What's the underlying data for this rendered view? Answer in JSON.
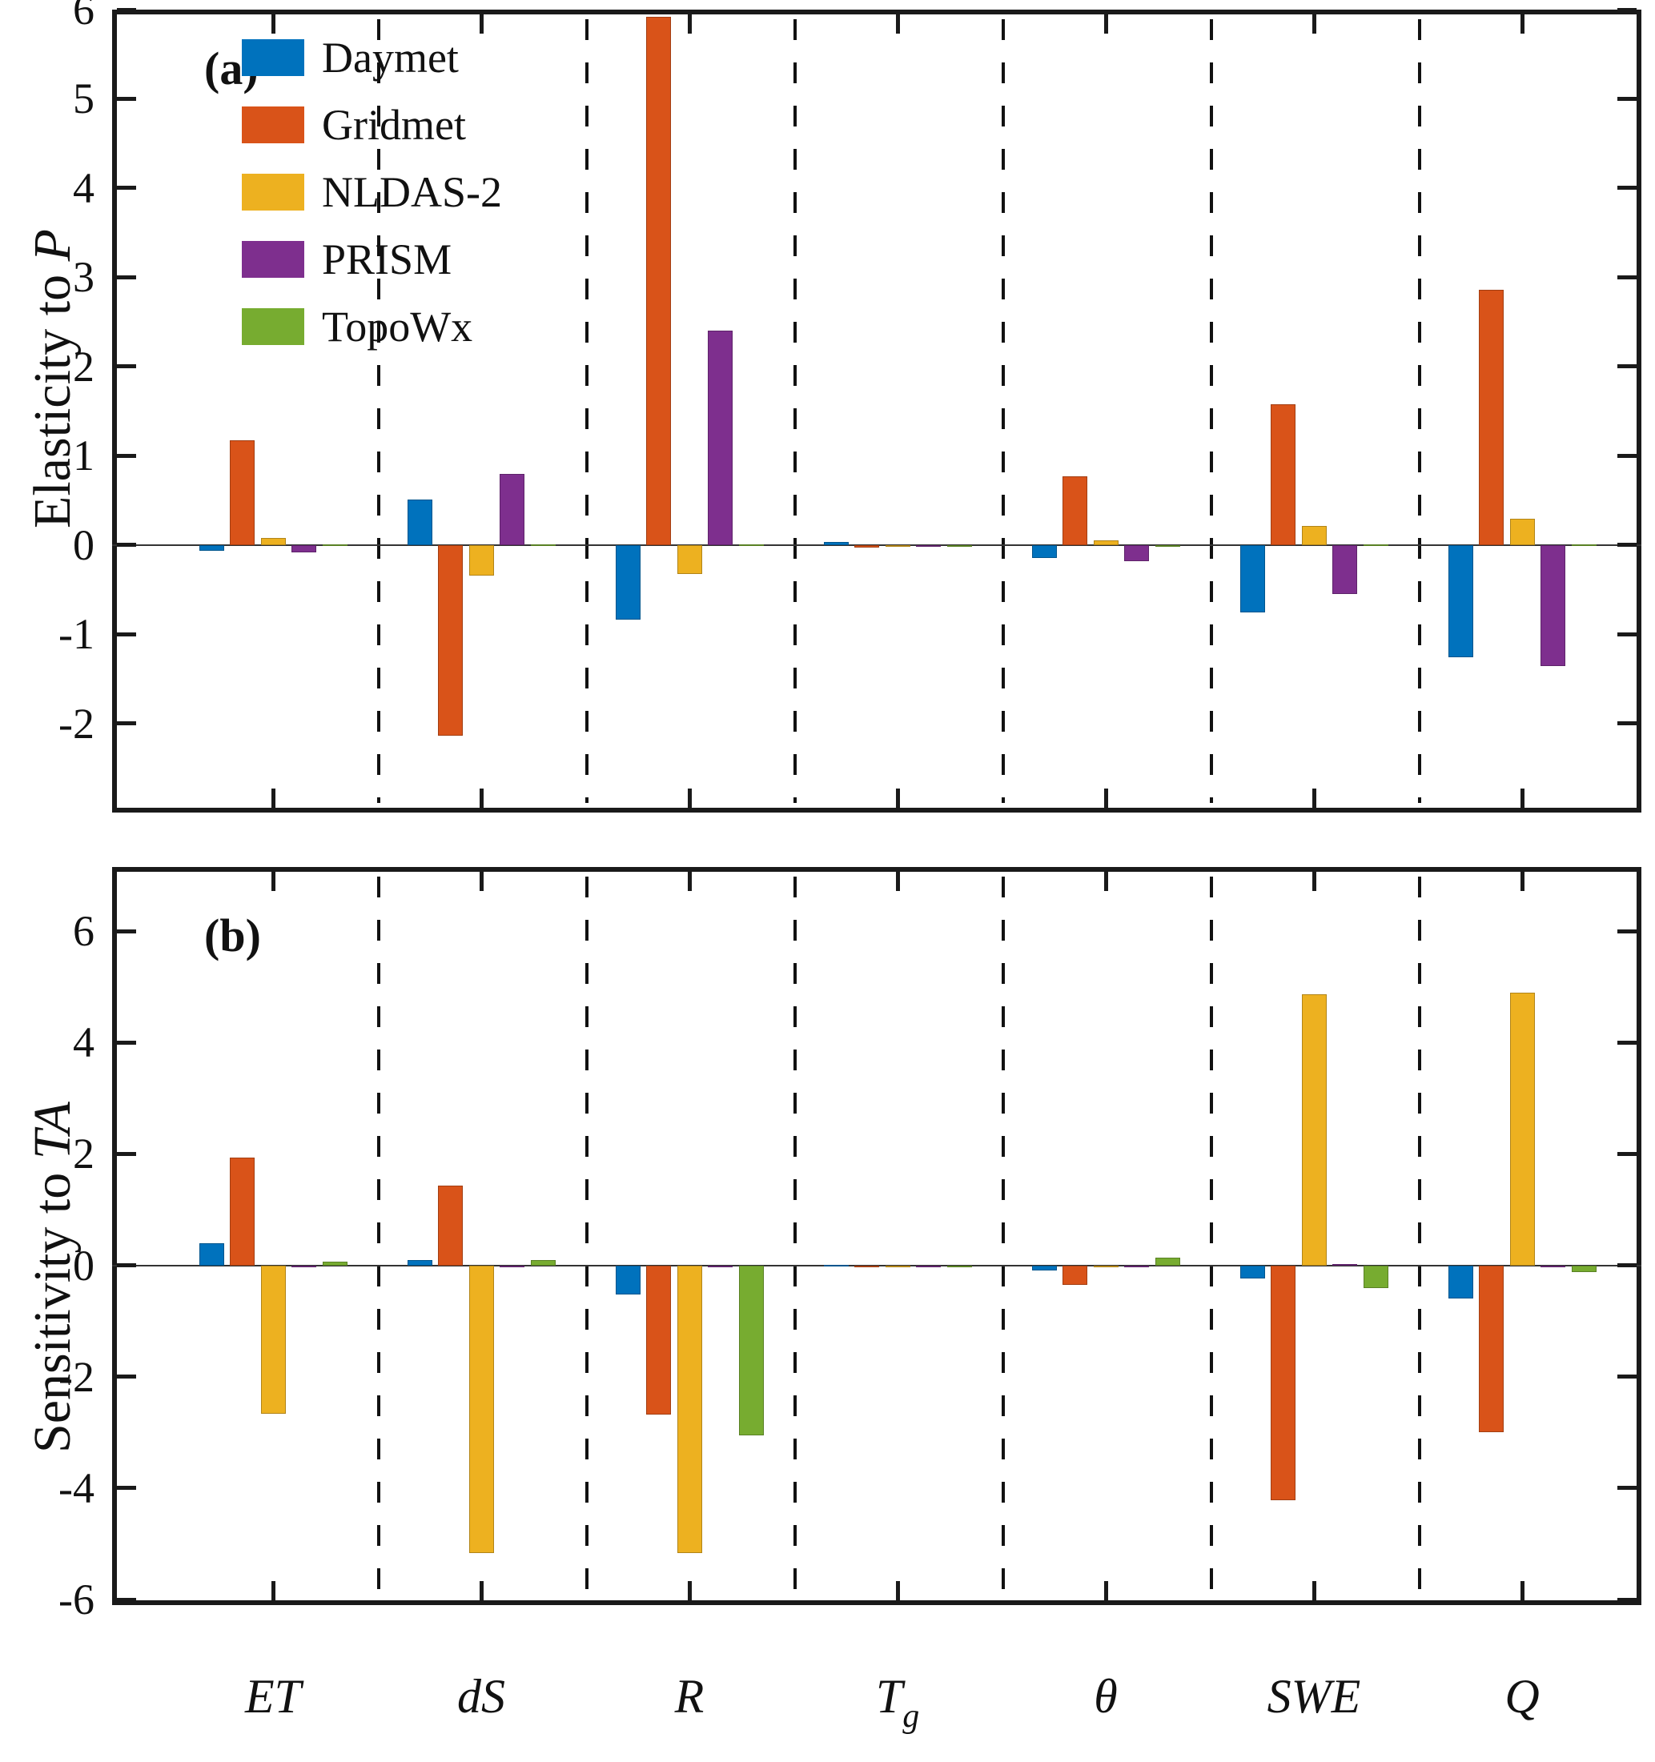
{
  "figure": {
    "panel_a_letter": "(a)",
    "panel_b_letter": "(b)",
    "ylabel_a_main": "Elasticity to ",
    "ylabel_a_var": "P",
    "ylabel_b_main": "Sensitivity to ",
    "ylabel_b_var": "TA"
  },
  "legend": {
    "position": "top-left-panel-a",
    "entries": [
      {
        "label": "Daymet",
        "color": "#0072BD"
      },
      {
        "label": "Gridmet",
        "color": "#D95319"
      },
      {
        "label": "NLDAS-2",
        "color": "#EDB120"
      },
      {
        "label": "PRISM",
        "color": "#7E2F8E"
      },
      {
        "label": "TopoWx",
        "color": "#77AC30"
      }
    ]
  },
  "categories_display": [
    {
      "t": "ET",
      "sub": ""
    },
    {
      "t": "dS",
      "sub": ""
    },
    {
      "t": "R",
      "sub": ""
    },
    {
      "t": "T",
      "sub": "g"
    },
    {
      "t": "θ",
      "sub": ""
    },
    {
      "t": "SWE",
      "sub": ""
    },
    {
      "t": "Q",
      "sub": ""
    }
  ],
  "chart_data": [
    {
      "panel": "a",
      "panel_label": "(a)",
      "type": "bar",
      "title": "",
      "xlabel": "",
      "ylabel": "Elasticity to P",
      "ylim": [
        -3,
        6
      ],
      "yticks": [
        -2,
        -1,
        0,
        1,
        2,
        3,
        4,
        5,
        6
      ],
      "grid": "dashed vertical separators between categories",
      "legend_position": "upper left",
      "categories": [
        "ET",
        "dS",
        "R",
        "Tg",
        "θ",
        "SWE",
        "Q"
      ],
      "series": [
        {
          "name": "Daymet",
          "color": "#0072BD",
          "values": [
            -0.07,
            0.51,
            -0.84,
            0.03,
            -0.15,
            -0.76,
            -1.26
          ]
        },
        {
          "name": "Gridmet",
          "color": "#D95319",
          "values": [
            1.17,
            -2.14,
            5.92,
            -0.03,
            0.77,
            1.58,
            2.86
          ]
        },
        {
          "name": "NLDAS-2",
          "color": "#EDB120",
          "values": [
            0.08,
            -0.34,
            -0.33,
            -0.02,
            0.05,
            0.21,
            0.29
          ]
        },
        {
          "name": "PRISM",
          "color": "#7E2F8E",
          "values": [
            -0.08,
            0.8,
            2.4,
            -0.02,
            -0.18,
            -0.55,
            -1.36
          ]
        },
        {
          "name": "TopoWx",
          "color": "#77AC30",
          "values": [
            0.01,
            0.01,
            0.01,
            0.0,
            -0.02,
            0.01,
            0.01
          ]
        }
      ]
    },
    {
      "panel": "b",
      "panel_label": "(b)",
      "type": "bar",
      "title": "",
      "xlabel": "",
      "ylabel": "Sensitivity to TA",
      "ylim": [
        -6.1,
        7.15
      ],
      "yticks": [
        -6,
        -4,
        -2,
        0,
        2,
        4,
        6
      ],
      "grid": "dashed vertical separators between categories",
      "categories": [
        "ET",
        "dS",
        "R",
        "Tg",
        "θ",
        "SWE",
        "Q"
      ],
      "series": [
        {
          "name": "Daymet",
          "color": "#0072BD",
          "values": [
            0.4,
            0.1,
            -0.53,
            0.01,
            -0.1,
            -0.24,
            -0.6
          ]
        },
        {
          "name": "Gridmet",
          "color": "#D95319",
          "values": [
            1.93,
            1.43,
            -2.68,
            -0.04,
            -0.35,
            -4.22,
            -3.0
          ]
        },
        {
          "name": "NLDAS-2",
          "color": "#EDB120",
          "values": [
            -2.66,
            -5.16,
            -5.16,
            -0.02,
            -0.04,
            4.86,
            4.9
          ]
        },
        {
          "name": "PRISM",
          "color": "#7E2F8E",
          "values": [
            -0.01,
            -0.01,
            -0.02,
            -0.01,
            -0.02,
            0.02,
            -0.02
          ]
        },
        {
          "name": "TopoWx",
          "color": "#77AC30",
          "values": [
            0.06,
            0.09,
            -3.06,
            -0.01,
            0.13,
            -0.41,
            -0.12
          ]
        }
      ]
    }
  ]
}
